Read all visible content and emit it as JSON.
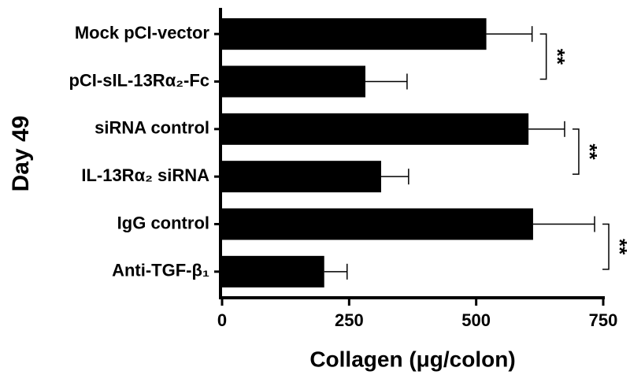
{
  "chart_data": {
    "type": "hbar",
    "y_label": "Day 49",
    "x_label": "Collagen (μg/colon)",
    "categories": [
      "Mock pCI-vector",
      "pCI-sIL-13Rα₂-Fc",
      "siRNA control",
      "IL-13Rα₂ siRNA",
      "IgG control",
      "Anti-TGF-β₁"
    ],
    "values": [
      520,
      282,
      603,
      313,
      612,
      201
    ],
    "errors": [
      90,
      82,
      71,
      54,
      121,
      45
    ],
    "color": "#000000",
    "xlim": [
      0,
      750
    ],
    "xticks": [
      0,
      250,
      500,
      750
    ],
    "annotations": [
      "**",
      "**",
      "**"
    ]
  }
}
